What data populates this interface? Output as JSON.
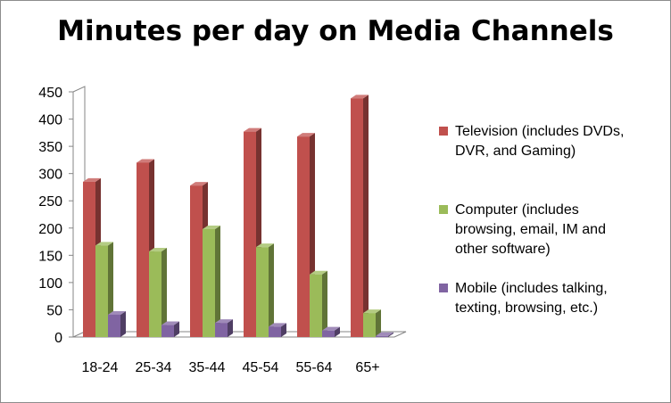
{
  "chart_data": {
    "type": "bar",
    "title": "Minutes per day on Media Channels",
    "categories": [
      "18-24",
      "25-34",
      "35-44",
      "45-54",
      "55-64",
      "65+"
    ],
    "ylim": [
      0,
      450
    ],
    "yticks": [
      0,
      50,
      100,
      150,
      200,
      250,
      300,
      350,
      400,
      450
    ],
    "grid": false,
    "legend_position": "right",
    "series": [
      {
        "name": "Television (includes DVDs, DVR, and Gaming)",
        "legend_lines": [
          "Television (includes DVDs,",
          "DVR, and Gaming)"
        ],
        "color": "#c0504d",
        "values": [
          285,
          320,
          278,
          377,
          368,
          438
        ]
      },
      {
        "name": "Computer (includes browsing, email, IM and other software)",
        "legend_lines": [
          "Computer (includes",
          "browsing, email, IM and",
          "other software)"
        ],
        "color": "#9bbb59",
        "values": [
          168,
          157,
          198,
          165,
          115,
          44
        ]
      },
      {
        "name": "Mobile (includes talking, texting, browsing, etc.)",
        "legend_lines": [
          "Mobile (includes talking,",
          "texting, browsing, etc.)"
        ],
        "color": "#8064a2",
        "values": [
          41,
          22,
          26,
          19,
          12,
          2
        ]
      }
    ]
  }
}
